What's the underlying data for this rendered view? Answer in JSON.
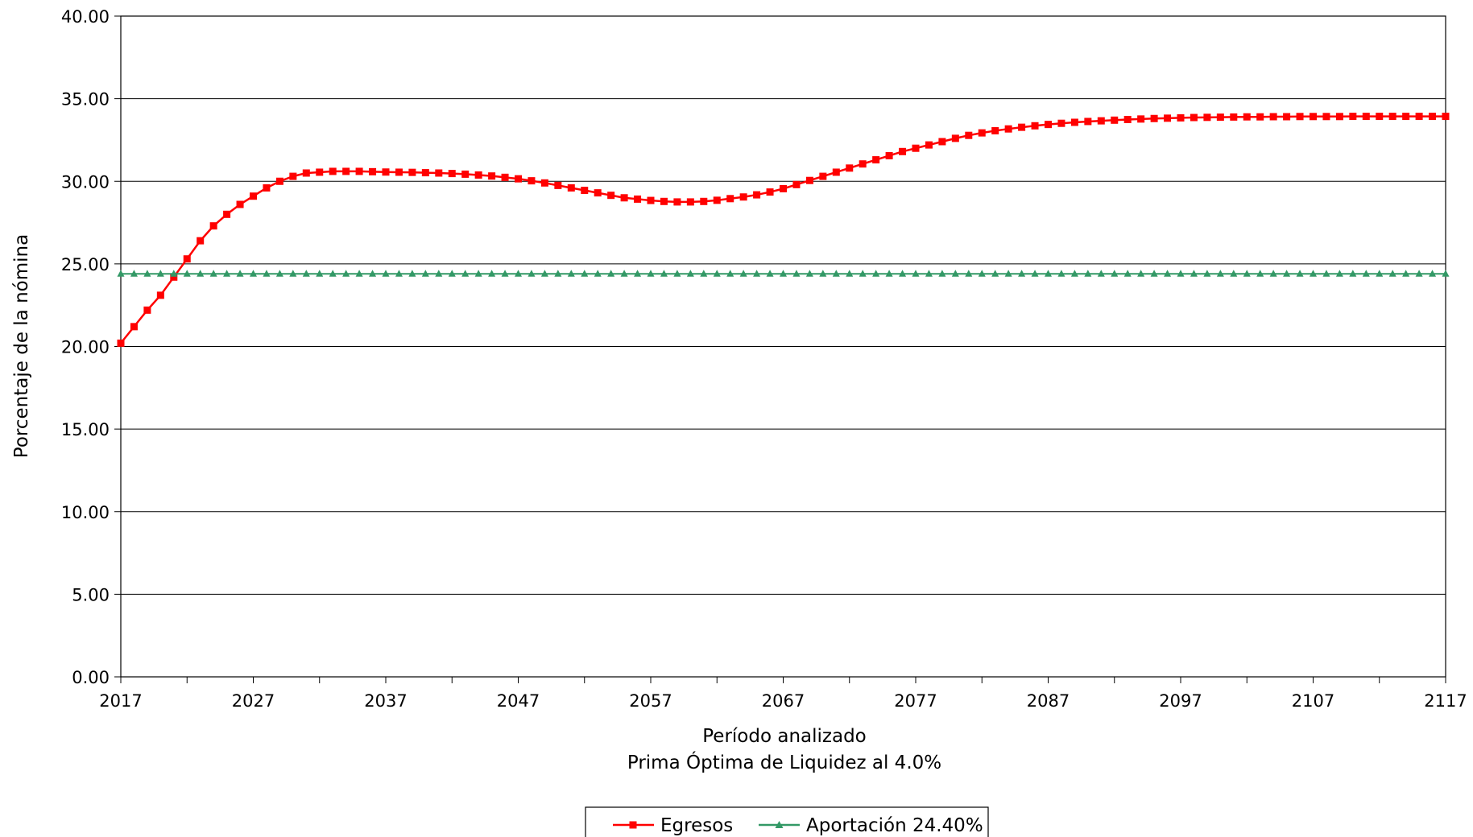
{
  "chart_data": {
    "type": "line",
    "ylabel": "Porcentaje de la nómina",
    "xlabel": "Período analizado",
    "xlabel_sub": "Prima Óptima de Liquidez al 4.0%",
    "xlim": [
      2017,
      2117
    ],
    "ylim": [
      0,
      40
    ],
    "y_ticks": [
      "0.00",
      "5.00",
      "10.00",
      "15.00",
      "20.00",
      "25.00",
      "30.00",
      "35.00",
      "40.00"
    ],
    "x_ticks": [
      "2017",
      "2027",
      "2037",
      "2047",
      "2057",
      "2067",
      "2077",
      "2087",
      "2097",
      "2107",
      "2117"
    ],
    "grid": true,
    "legend_position": "bottom-center",
    "series": [
      {
        "name": "Egresos",
        "color": "#ff0000",
        "marker": "square",
        "x": [
          2017,
          2018,
          2019,
          2020,
          2021,
          2022,
          2023,
          2024,
          2025,
          2026,
          2027,
          2028,
          2029,
          2030,
          2031,
          2032,
          2033,
          2034,
          2035,
          2036,
          2037,
          2038,
          2039,
          2040,
          2041,
          2042,
          2043,
          2044,
          2045,
          2046,
          2047,
          2048,
          2049,
          2050,
          2051,
          2052,
          2053,
          2054,
          2055,
          2056,
          2057,
          2058,
          2059,
          2060,
          2061,
          2062,
          2063,
          2064,
          2065,
          2066,
          2067,
          2068,
          2069,
          2070,
          2071,
          2072,
          2073,
          2074,
          2075,
          2076,
          2077,
          2078,
          2079,
          2080,
          2081,
          2082,
          2083,
          2084,
          2085,
          2086,
          2087,
          2088,
          2089,
          2090,
          2091,
          2092,
          2093,
          2094,
          2095,
          2096,
          2097,
          2098,
          2099,
          2100,
          2101,
          2102,
          2103,
          2104,
          2105,
          2106,
          2107,
          2108,
          2109,
          2110,
          2111,
          2112,
          2113,
          2114,
          2115,
          2116,
          2117
        ],
        "values": [
          20.2,
          21.2,
          22.2,
          23.1,
          24.2,
          25.3,
          26.4,
          27.3,
          28.0,
          28.6,
          29.1,
          29.6,
          30.0,
          30.3,
          30.5,
          30.55,
          30.6,
          30.6,
          30.6,
          30.58,
          30.56,
          30.55,
          30.54,
          30.52,
          30.5,
          30.47,
          30.43,
          30.38,
          30.32,
          30.24,
          30.15,
          30.03,
          29.9,
          29.75,
          29.6,
          29.45,
          29.3,
          29.15,
          29.0,
          28.92,
          28.84,
          28.78,
          28.75,
          28.75,
          28.78,
          28.85,
          28.95,
          29.05,
          29.18,
          29.35,
          29.55,
          29.8,
          30.05,
          30.3,
          30.55,
          30.8,
          31.05,
          31.3,
          31.55,
          31.8,
          32.0,
          32.2,
          32.4,
          32.6,
          32.78,
          32.93,
          33.06,
          33.17,
          33.27,
          33.36,
          33.44,
          33.51,
          33.57,
          33.62,
          33.66,
          33.7,
          33.74,
          33.77,
          33.8,
          33.82,
          33.84,
          33.86,
          33.87,
          33.88,
          33.89,
          33.9,
          33.9,
          33.91,
          33.91,
          33.92,
          33.92,
          33.92,
          33.92,
          33.93,
          33.93,
          33.93,
          33.93,
          33.93,
          33.93,
          33.93,
          33.93
        ]
      },
      {
        "name": "Aportación 24.40%",
        "color": "#339966",
        "marker": "triangle",
        "x": [
          2017,
          2018,
          2019,
          2020,
          2021,
          2022,
          2023,
          2024,
          2025,
          2026,
          2027,
          2028,
          2029,
          2030,
          2031,
          2032,
          2033,
          2034,
          2035,
          2036,
          2037,
          2038,
          2039,
          2040,
          2041,
          2042,
          2043,
          2044,
          2045,
          2046,
          2047,
          2048,
          2049,
          2050,
          2051,
          2052,
          2053,
          2054,
          2055,
          2056,
          2057,
          2058,
          2059,
          2060,
          2061,
          2062,
          2063,
          2064,
          2065,
          2066,
          2067,
          2068,
          2069,
          2070,
          2071,
          2072,
          2073,
          2074,
          2075,
          2076,
          2077,
          2078,
          2079,
          2080,
          2081,
          2082,
          2083,
          2084,
          2085,
          2086,
          2087,
          2088,
          2089,
          2090,
          2091,
          2092,
          2093,
          2094,
          2095,
          2096,
          2097,
          2098,
          2099,
          2100,
          2101,
          2102,
          2103,
          2104,
          2105,
          2106,
          2107,
          2108,
          2109,
          2110,
          2111,
          2112,
          2113,
          2114,
          2115,
          2116,
          2117
        ],
        "values": [
          24.4,
          24.4,
          24.4,
          24.4,
          24.4,
          24.4,
          24.4,
          24.4,
          24.4,
          24.4,
          24.4,
          24.4,
          24.4,
          24.4,
          24.4,
          24.4,
          24.4,
          24.4,
          24.4,
          24.4,
          24.4,
          24.4,
          24.4,
          24.4,
          24.4,
          24.4,
          24.4,
          24.4,
          24.4,
          24.4,
          24.4,
          24.4,
          24.4,
          24.4,
          24.4,
          24.4,
          24.4,
          24.4,
          24.4,
          24.4,
          24.4,
          24.4,
          24.4,
          24.4,
          24.4,
          24.4,
          24.4,
          24.4,
          24.4,
          24.4,
          24.4,
          24.4,
          24.4,
          24.4,
          24.4,
          24.4,
          24.4,
          24.4,
          24.4,
          24.4,
          24.4,
          24.4,
          24.4,
          24.4,
          24.4,
          24.4,
          24.4,
          24.4,
          24.4,
          24.4,
          24.4,
          24.4,
          24.4,
          24.4,
          24.4,
          24.4,
          24.4,
          24.4,
          24.4,
          24.4,
          24.4,
          24.4,
          24.4,
          24.4,
          24.4,
          24.4,
          24.4,
          24.4,
          24.4,
          24.4,
          24.4,
          24.4,
          24.4,
          24.4,
          24.4,
          24.4,
          24.4,
          24.4,
          24.4,
          24.4,
          24.4
        ]
      }
    ]
  }
}
